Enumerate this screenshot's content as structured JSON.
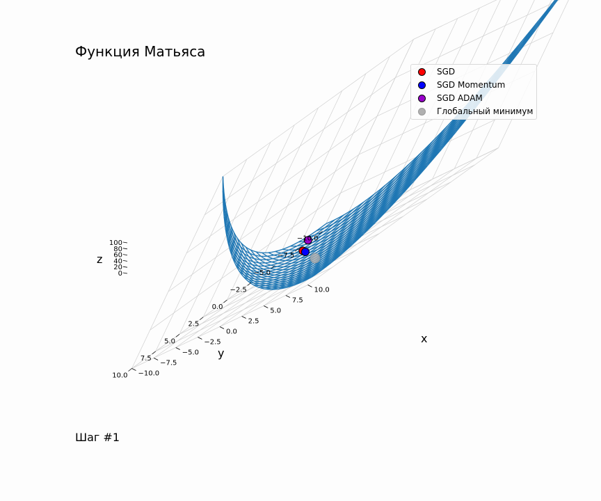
{
  "title": "Функция Матьяса",
  "step_label": "Шаг #1",
  "colors": {
    "surface": "#1f77b4",
    "grid": "#d0d0d0"
  },
  "chart_data": {
    "type": "surface3d",
    "function": "Matyas",
    "xlabel": "x",
    "ylabel": "y",
    "zlabel": "z",
    "xlim": [
      -10,
      10
    ],
    "ylim": [
      -10,
      10
    ],
    "zlim": [
      0,
      100
    ],
    "x_ticks": [
      "−10.0",
      "−7.5",
      "−5.0",
      "−2.5",
      "0.0",
      "2.5",
      "5.0",
      "7.5",
      "10.0"
    ],
    "y_ticks": [
      "−10.0",
      "−7.5",
      "−5.0",
      "−2.5",
      "0.0",
      "2.5",
      "5.0",
      "7.5",
      "10.0"
    ],
    "z_ticks": [
      "0",
      "20",
      "40",
      "60",
      "80",
      "100"
    ],
    "legend_position": "top-right",
    "series": [
      {
        "name": "SGD",
        "color": "#ff0000",
        "x": -6.0,
        "y": -4.0,
        "z": 2.6
      },
      {
        "name": "SGD Momentum",
        "color": "#0000ff",
        "x": -5.0,
        "y": -3.4,
        "z": 2.0
      },
      {
        "name": "SGD ADAM",
        "color": "#9900cc",
        "x": -8.0,
        "y": -6.2,
        "z": 4.6
      },
      {
        "name": "Глобальный минимум",
        "color": "#b0b0b0",
        "x": 0,
        "y": 0,
        "z": 0
      }
    ]
  }
}
